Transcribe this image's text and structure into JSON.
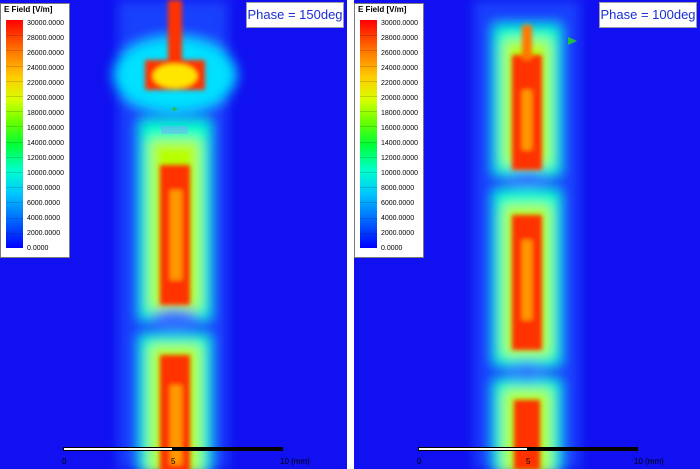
{
  "panels": [
    {
      "id": "left",
      "phase": "Phase = 150deg",
      "legend": {
        "title": "E Field [V/m]",
        "ticks": [
          "30000.0000",
          "28000.0000",
          "26000.0000",
          "24000.0000",
          "22000.0000",
          "20000.0000",
          "18000.0000",
          "16000.0000",
          "14000.0000",
          "12000.0000",
          "10000.0000",
          "8000.0000",
          "6000.0000",
          "4000.0000",
          "2000.0000",
          "0.0000"
        ]
      },
      "scale": {
        "labels": [
          "0",
          "5",
          "10 (mm)"
        ]
      }
    },
    {
      "id": "right",
      "phase": "Phase = 100deg",
      "legend": {
        "title": "E Field [V/m]",
        "ticks": [
          "30000.0000",
          "28000.0000",
          "26000.0000",
          "24000.0000",
          "22000.0000",
          "20000.0000",
          "18000.0000",
          "16000.0000",
          "14000.0000",
          "12000.0000",
          "10000.0000",
          "8000.0000",
          "6000.0000",
          "4000.0000",
          "2000.0000",
          "0.0000"
        ]
      },
      "scale": {
        "labels": [
          "0",
          "5",
          "10 (mm)"
        ]
      }
    }
  ],
  "colors": {
    "background": "#1010f0",
    "high": "#ff2200",
    "mid": "#ffdd00",
    "low": "#00ccff"
  }
}
